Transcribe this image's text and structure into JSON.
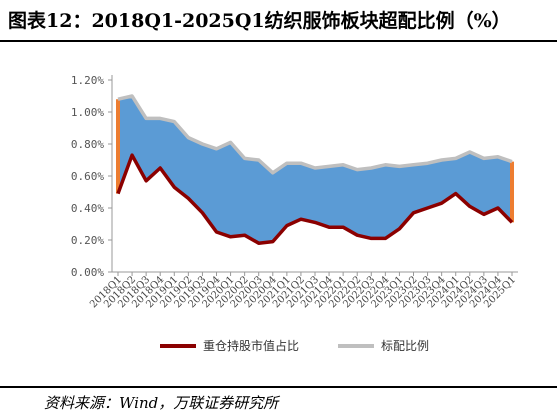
{
  "title": "图表12：2018Q1-2025Q1纺织服饰板块超配比例（%）",
  "source": "资料来源：Wind，万联证券研究所",
  "chart_data": {
    "type": "area",
    "ylim": [
      0,
      1.2
    ],
    "yticks": [
      "0.00%",
      "0.20%",
      "0.40%",
      "0.60%",
      "0.80%",
      "1.00%",
      "1.20%"
    ],
    "categories": [
      "2018Q1",
      "2018Q2",
      "2018Q3",
      "2018Q4",
      "2019Q1",
      "2019Q2",
      "2019Q3",
      "2019Q4",
      "2020Q1",
      "2020Q2",
      "2020Q3",
      "2020Q4",
      "2021Q1",
      "2021Q2",
      "2021Q3",
      "2021Q4",
      "2022Q1",
      "2022Q2",
      "2022Q3",
      "2022Q4",
      "2023Q1",
      "2023Q2",
      "2023Q3",
      "2023Q4",
      "2024Q1",
      "2024Q2",
      "2024Q3",
      "2024Q4",
      "2025Q1"
    ],
    "series": [
      {
        "name": "重仓持股市值占比",
        "color": "#8b0000",
        "values": [
          0.49,
          0.73,
          0.57,
          0.65,
          0.53,
          0.46,
          0.37,
          0.25,
          0.22,
          0.23,
          0.18,
          0.19,
          0.29,
          0.33,
          0.31,
          0.28,
          0.28,
          0.23,
          0.21,
          0.21,
          0.27,
          0.37,
          0.4,
          0.43,
          0.49,
          0.41,
          0.36,
          0.4,
          0.31
        ]
      },
      {
        "name": "标配比例",
        "color": "#bfbfbf",
        "values": [
          1.08,
          1.1,
          0.96,
          0.96,
          0.94,
          0.84,
          0.8,
          0.77,
          0.81,
          0.71,
          0.7,
          0.62,
          0.68,
          0.68,
          0.65,
          0.66,
          0.67,
          0.64,
          0.65,
          0.67,
          0.66,
          0.67,
          0.68,
          0.7,
          0.71,
          0.75,
          0.71,
          0.72,
          0.69
        ]
      }
    ],
    "fill_between_color": "#5b9bd5",
    "underweight_marker_color": "#ed7d31",
    "legend_position": "bottom"
  }
}
